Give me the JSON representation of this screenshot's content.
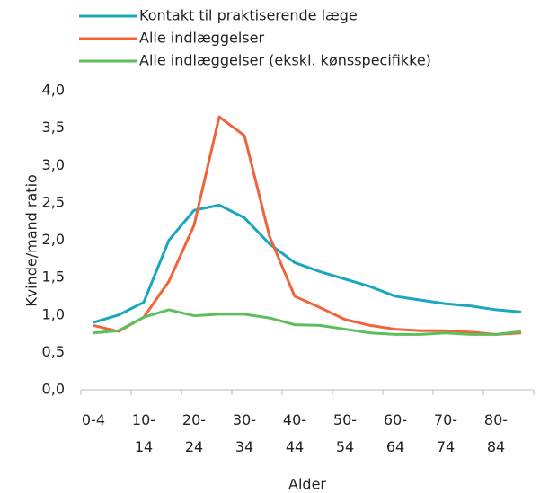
{
  "chart_data": {
    "type": "line",
    "y_label": "Kvinde/mand ratio",
    "x_label": "Alder",
    "categories": [
      "0-4",
      null,
      "10- 14",
      null,
      "20- 24",
      null,
      "30- 34",
      null,
      "40- 44",
      null,
      "50- 54",
      null,
      "60- 64",
      null,
      "70- 74",
      null,
      "80- 84",
      null
    ],
    "series": [
      {
        "name": "Kontakt til praktiserende læge",
        "color": "#1aa6bf",
        "values": [
          0.9,
          1.0,
          1.17,
          2.0,
          2.4,
          2.47,
          2.3,
          1.95,
          1.7,
          1.58,
          1.48,
          1.38,
          1.25,
          1.2,
          1.15,
          1.12,
          1.07,
          1.04
        ]
      },
      {
        "name": "Alle indlæggelser",
        "color": "#f0643c",
        "values": [
          0.86,
          0.78,
          0.97,
          1.45,
          2.2,
          3.65,
          3.4,
          2.05,
          1.25,
          1.1,
          0.94,
          0.86,
          0.81,
          0.79,
          0.79,
          0.77,
          0.74,
          0.76
        ]
      },
      {
        "name": "Alle indlæggelser (ekskl. kønsspecifikke)",
        "color": "#5cbf5c",
        "values": [
          0.76,
          0.79,
          0.97,
          1.07,
          0.99,
          1.01,
          1.01,
          0.96,
          0.87,
          0.86,
          0.81,
          0.76,
          0.74,
          0.74,
          0.76,
          0.74,
          0.74,
          0.78
        ]
      }
    ],
    "ylim": [
      0,
      4
    ],
    "yticks": [
      {
        "value": 0,
        "label": "0,0"
      },
      {
        "value": 0.5,
        "label": "0,5"
      },
      {
        "value": 1,
        "label": "1,0"
      },
      {
        "value": 1.5,
        "label": "1,5"
      },
      {
        "value": 2,
        "label": "2,0"
      },
      {
        "value": 2.5,
        "label": "2,5"
      },
      {
        "value": 3,
        "label": "3,0"
      },
      {
        "value": 3.5,
        "label": "3,5"
      },
      {
        "value": 4,
        "label": "4,0"
      }
    ],
    "grid": false,
    "legend": "top"
  }
}
